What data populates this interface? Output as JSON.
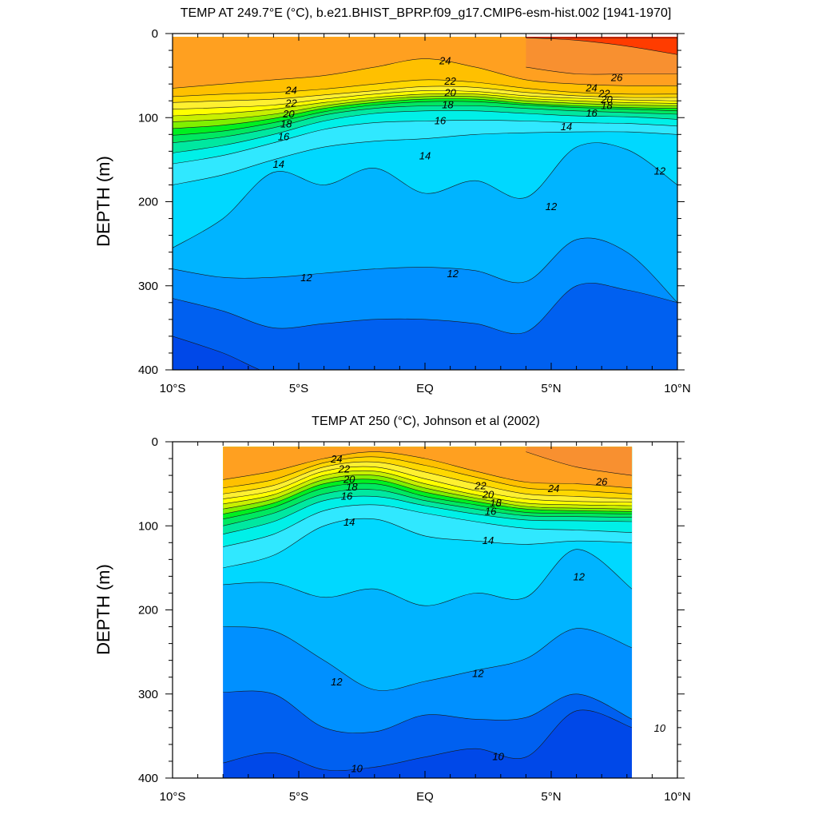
{
  "chart_data": [
    {
      "type": "contour",
      "title": "TEMP AT 249.7°E (°C), b.e21.BHIST_BPRP.f09_g17.CMIP6-esm-hist.002 [1941-1970]",
      "xlabel": "",
      "ylabel": "DEPTH (m)",
      "xlim": [
        -10,
        10
      ],
      "ylim": [
        400,
        0
      ],
      "x_ticks": [
        -10,
        -5,
        0,
        5,
        10
      ],
      "x_tick_labels": [
        "10°S",
        "5°S",
        "EQ",
        "5°N",
        "10°N"
      ],
      "y_ticks": [
        0,
        100,
        200,
        300,
        400
      ],
      "y_tick_labels": [
        "0",
        "100",
        "200",
        "300",
        "400"
      ],
      "data_xrange": [
        -10,
        10
      ],
      "data_yrange": [
        4,
        400
      ],
      "isotherm_depths": {
        "x": [
          -10,
          -8,
          -6,
          -4,
          -2,
          0,
          2,
          4,
          6,
          8,
          10
        ],
        "levels": [
          {
            "t": 28,
            "d": [
              null,
              null,
              null,
              null,
              null,
              null,
              null,
              5,
              5,
              5,
              5
            ]
          },
          {
            "t": 27,
            "d": [
              null,
              null,
              null,
              null,
              null,
              null,
              null,
              5,
              8,
              15,
              25
            ]
          },
          {
            "t": 26,
            "d": [
              null,
              null,
              null,
              null,
              null,
              null,
              null,
              40,
              48,
              48,
              48
            ]
          },
          {
            "t": 25,
            "d": [
              65,
              60,
              55,
              50,
              40,
              30,
              40,
              55,
              60,
              62,
              62
            ]
          },
          {
            "t": 24,
            "d": [
              75,
              72,
              70,
              66,
              60,
              55,
              58,
              65,
              70,
              72,
              72
            ]
          },
          {
            "t": 23,
            "d": [
              82,
              80,
              78,
              73,
              68,
              63,
              64,
              70,
              74,
              76,
              76
            ]
          },
          {
            "t": 22,
            "d": [
              90,
              88,
              85,
              78,
              72,
              68,
              69,
              74,
              77,
              79,
              80
            ]
          },
          {
            "t": 21,
            "d": [
              98,
              95,
              90,
              82,
              76,
              72,
              72,
              77,
              80,
              82,
              83
            ]
          },
          {
            "t": 20,
            "d": [
              105,
              102,
              96,
              86,
              79,
              75,
              75,
              80,
              83,
              85,
              86
            ]
          },
          {
            "t": 19,
            "d": [
              113,
              109,
              101,
              89,
              82,
              78,
              78,
              83,
              86,
              88,
              89
            ]
          },
          {
            "t": 18,
            "d": [
              121,
              116,
              106,
              93,
              85,
              81,
              81,
              85,
              88,
              90,
              92
            ]
          },
          {
            "t": 17,
            "d": [
              130,
              123,
              112,
              97,
              89,
              86,
              86,
              89,
              92,
              94,
              96
            ]
          },
          {
            "t": 16,
            "d": [
              142,
              133,
              120,
              104,
              95,
              92,
              92,
              95,
              98,
              99,
              102
            ]
          },
          {
            "t": 15,
            "d": [
              155,
              145,
              130,
              114,
              106,
              104,
              103,
              104,
              106,
              107,
              110
            ]
          },
          {
            "t": 14,
            "d": [
              180,
              168,
              150,
              135,
              128,
              125,
              120,
              118,
              117,
              117,
              120
            ]
          },
          {
            "t": 13,
            "d": [
              255,
              220,
              165,
              180,
              160,
              190,
              175,
              195,
              135,
              138,
              180
            ]
          },
          {
            "t": 12,
            "d": [
              280,
              290,
              290,
              285,
              280,
              278,
              282,
              295,
              245,
              260,
              320
            ]
          },
          {
            "t": 11,
            "d": [
              315,
              330,
              350,
              345,
              340,
              340,
              345,
              355,
              300,
              305,
              320
            ]
          },
          {
            "t": 10,
            "d": [
              360,
              380,
              405,
              405,
              405,
              405,
              405,
              405,
              405,
              405,
              405
            ]
          }
        ]
      },
      "contour_labels": [
        {
          "text": "24",
          "x": -5.3,
          "y": 67
        },
        {
          "text": "22",
          "x": -5.3,
          "y": 82
        },
        {
          "text": "20",
          "x": -5.4,
          "y": 95
        },
        {
          "text": "18",
          "x": -5.5,
          "y": 107
        },
        {
          "text": "16",
          "x": -5.6,
          "y": 122
        },
        {
          "text": "14",
          "x": -5.8,
          "y": 155
        },
        {
          "text": "14",
          "x": 0.0,
          "y": 145
        },
        {
          "text": "24",
          "x": 0.8,
          "y": 32
        },
        {
          "text": "22",
          "x": 1.0,
          "y": 56
        },
        {
          "text": "20",
          "x": 1.0,
          "y": 70
        },
        {
          "text": "18",
          "x": 0.9,
          "y": 84
        },
        {
          "text": "16",
          "x": 0.6,
          "y": 103
        },
        {
          "text": "14",
          "x": 5.6,
          "y": 110
        },
        {
          "text": "16",
          "x": 6.6,
          "y": 94
        },
        {
          "text": "26",
          "x": 7.6,
          "y": 52
        },
        {
          "text": "24",
          "x": 6.6,
          "y": 64
        },
        {
          "text": "22",
          "x": 7.1,
          "y": 71
        },
        {
          "text": "20",
          "x": 7.2,
          "y": 78
        },
        {
          "text": "18",
          "x": 7.2,
          "y": 85
        },
        {
          "text": "12",
          "x": 9.3,
          "y": 163
        },
        {
          "text": "12",
          "x": 5.0,
          "y": 205
        },
        {
          "text": "12",
          "x": -4.7,
          "y": 290
        },
        {
          "text": "12",
          "x": 1.1,
          "y": 285
        }
      ]
    },
    {
      "type": "contour",
      "title": "TEMP AT 250 (°C), Johnson et al (2002)",
      "xlabel": "",
      "ylabel": "DEPTH (m)",
      "xlim": [
        -10,
        10
      ],
      "ylim": [
        400,
        0
      ],
      "x_ticks": [
        -10,
        -5,
        0,
        5,
        10
      ],
      "x_tick_labels": [
        "10°S",
        "5°S",
        "EQ",
        "5°N",
        "10°N"
      ],
      "y_ticks": [
        0,
        100,
        200,
        300,
        400
      ],
      "y_tick_labels": [
        "0",
        "100",
        "200",
        "300",
        "400"
      ],
      "data_xrange": [
        -8,
        8.2
      ],
      "data_yrange": [
        6,
        400
      ],
      "isotherm_depths": {
        "x": [
          -8,
          -6,
          -4,
          -2,
          0,
          2,
          4,
          6,
          8.2
        ],
        "levels": [
          {
            "t": 27,
            "d": [
              null,
              null,
              null,
              null,
              null,
              null,
              5,
              5,
              5
            ]
          },
          {
            "t": 26,
            "d": [
              null,
              null,
              null,
              null,
              null,
              null,
              12,
              30,
              40
            ]
          },
          {
            "t": 25,
            "d": [
              45,
              35,
              20,
              12,
              20,
              35,
              48,
              50,
              55
            ]
          },
          {
            "t": 24,
            "d": [
              55,
              45,
              25,
              18,
              28,
              42,
              55,
              58,
              62
            ]
          },
          {
            "t": 23,
            "d": [
              62,
              52,
              30,
              24,
              36,
              50,
              62,
              65,
              68
            ]
          },
          {
            "t": 22,
            "d": [
              68,
              58,
              35,
              30,
              44,
              58,
              68,
              71,
              72
            ]
          },
          {
            "t": 21,
            "d": [
              74,
              63,
              40,
              35,
              50,
              63,
              73,
              75,
              76
            ]
          },
          {
            "t": 20,
            "d": [
              80,
              68,
              45,
              40,
              55,
              67,
              77,
              79,
              80
            ]
          },
          {
            "t": 19,
            "d": [
              86,
              73,
              50,
              45,
              60,
              71,
              80,
              82,
              83
            ]
          },
          {
            "t": 18,
            "d": [
              92,
              78,
              55,
              50,
              65,
              75,
              84,
              85,
              86
            ]
          },
          {
            "t": 17,
            "d": [
              100,
              85,
              62,
              57,
              70,
              80,
              88,
              89,
              90
            ]
          },
          {
            "t": 16,
            "d": [
              110,
              95,
              70,
              65,
              76,
              86,
              93,
              94,
              95
            ]
          },
          {
            "t": 15,
            "d": [
              125,
              110,
              82,
              75,
              85,
              95,
              103,
              105,
              108
            ]
          },
          {
            "t": 14,
            "d": [
              150,
              135,
              100,
              92,
              112,
              118,
              122,
              118,
              120
            ]
          },
          {
            "t": 13,
            "d": [
              170,
              168,
              185,
              175,
              195,
              180,
              185,
              128,
              175
            ]
          },
          {
            "t": 12,
            "d": [
              220,
              225,
              260,
              295,
              285,
              272,
              258,
              222,
              245
            ]
          },
          {
            "t": 11,
            "d": [
              298,
              300,
              340,
              345,
              325,
              330,
              328,
              300,
              330
            ]
          },
          {
            "t": 10,
            "d": [
              382,
              370,
              390,
              387,
              375,
              365,
              375,
              320,
              340
            ]
          }
        ]
      },
      "contour_labels": [
        {
          "text": "24",
          "x": -3.5,
          "y": 20
        },
        {
          "text": "22",
          "x": -3.2,
          "y": 32
        },
        {
          "text": "20",
          "x": -3.0,
          "y": 44
        },
        {
          "text": "18",
          "x": -2.9,
          "y": 53
        },
        {
          "text": "16",
          "x": -3.1,
          "y": 64
        },
        {
          "text": "14",
          "x": -3.0,
          "y": 95
        },
        {
          "text": "22",
          "x": 2.2,
          "y": 52
        },
        {
          "text": "20",
          "x": 2.5,
          "y": 62
        },
        {
          "text": "18",
          "x": 2.8,
          "y": 72
        },
        {
          "text": "16",
          "x": 2.6,
          "y": 82
        },
        {
          "text": "14",
          "x": 2.5,
          "y": 117
        },
        {
          "text": "24",
          "x": 5.1,
          "y": 55
        },
        {
          "text": "26",
          "x": 7.0,
          "y": 47
        },
        {
          "text": "12",
          "x": 6.1,
          "y": 160
        },
        {
          "text": "12",
          "x": -3.5,
          "y": 285
        },
        {
          "text": "12",
          "x": 2.1,
          "y": 275
        },
        {
          "text": "10",
          "x": -2.7,
          "y": 388
        },
        {
          "text": "10",
          "x": 2.9,
          "y": 374
        },
        {
          "text": "10",
          "x": 9.3,
          "y": 340
        }
      ]
    }
  ],
  "color_scale": [
    {
      "t": 9,
      "color": "#0048e8"
    },
    {
      "t": 10,
      "color": "#0060f0"
    },
    {
      "t": 11,
      "color": "#0090ff"
    },
    {
      "t": 12,
      "color": "#00b4ff"
    },
    {
      "t": 13,
      "color": "#00d8ff"
    },
    {
      "t": 14,
      "color": "#30e8ff"
    },
    {
      "t": 15,
      "color": "#00f0e8"
    },
    {
      "t": 16,
      "color": "#00e8a0"
    },
    {
      "t": 17,
      "color": "#00e860"
    },
    {
      "t": 18,
      "color": "#00f020"
    },
    {
      "t": 19,
      "color": "#80f000"
    },
    {
      "t": 20,
      "color": "#c8f000"
    },
    {
      "t": 21,
      "color": "#ffff00"
    },
    {
      "t": 22,
      "color": "#fff030"
    },
    {
      "t": 23,
      "color": "#ffd800"
    },
    {
      "t": 24,
      "color": "#ffc000"
    },
    {
      "t": 25,
      "color": "#ffa020"
    },
    {
      "t": 26,
      "color": "#f89030"
    },
    {
      "t": 27,
      "color": "#ff3c00"
    },
    {
      "t": 28,
      "color": "#ff1000"
    }
  ]
}
